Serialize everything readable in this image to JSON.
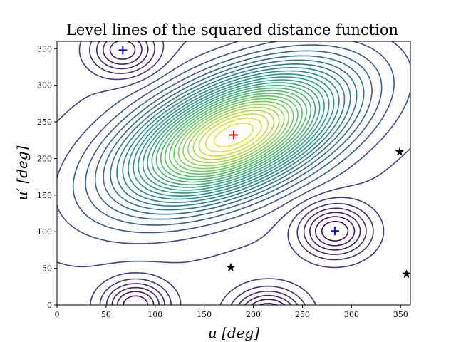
{
  "chart_data": {
    "type": "contour",
    "title": "Level lines of the squared distance function",
    "xlabel": "u [deg]",
    "ylabel": "u′ [deg]",
    "xlim": [
      0,
      360
    ],
    "ylim": [
      0,
      360
    ],
    "xticks": [
      0,
      50,
      100,
      150,
      200,
      250,
      300,
      350
    ],
    "yticks": [
      0,
      50,
      100,
      150,
      200,
      250,
      300,
      350
    ],
    "grid": false,
    "colormap": [
      "#440154",
      "#3b528b",
      "#21918c",
      "#5ec962",
      "#fde725"
    ],
    "markers": [
      {
        "type": "plus",
        "color": "#ff0000",
        "x": 180,
        "y": 232
      },
      {
        "type": "plus",
        "color": "#0000ff",
        "x": 67,
        "y": 348
      },
      {
        "type": "plus",
        "color": "#0000ff",
        "x": 283,
        "y": 101
      },
      {
        "type": "star",
        "color": "#000000",
        "x": 177,
        "y": 51
      },
      {
        "type": "star",
        "color": "#000000",
        "x": 349,
        "y": 209
      },
      {
        "type": "star",
        "color": "#000000",
        "x": 356,
        "y": 42
      }
    ]
  }
}
